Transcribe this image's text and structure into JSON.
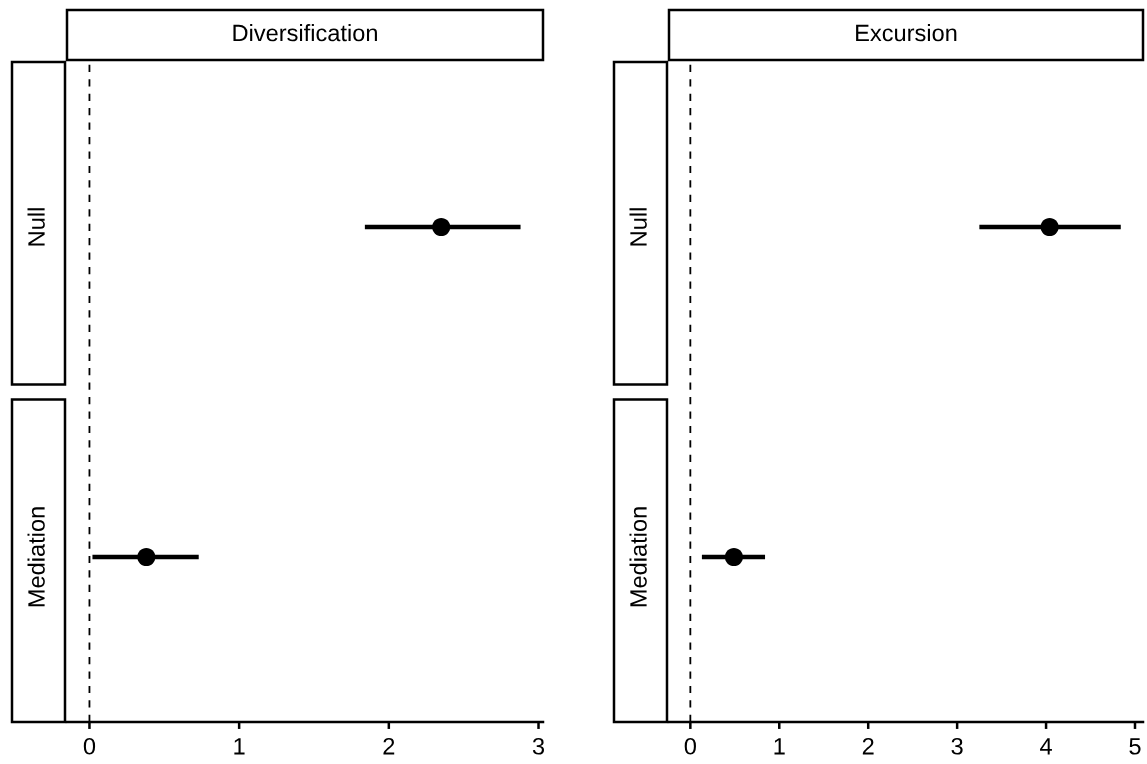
{
  "chart_data": [
    {
      "type": "scatter",
      "orientation": "horizontal",
      "title": "Diversification",
      "categories": [
        "Null",
        "Mediation"
      ],
      "values": [
        2.35,
        0.38
      ],
      "errors": [
        [
          1.84,
          2.88
        ],
        [
          0.02,
          0.73
        ]
      ],
      "color": "#000000",
      "marker": "circle",
      "xlim": [
        -0.15,
        3.03
      ],
      "xticks": [
        0,
        1,
        2,
        3
      ],
      "grid": false,
      "ref_lines": [
        {
          "axis": "x",
          "value": 0,
          "line_style": "dashed",
          "color": "#000000"
        }
      ]
    },
    {
      "type": "scatter",
      "orientation": "horizontal",
      "title": "Excursion",
      "categories": [
        "Null",
        "Mediation"
      ],
      "values": [
        4.04,
        0.49
      ],
      "errors": [
        [
          3.25,
          4.84
        ],
        [
          0.13,
          0.84
        ]
      ],
      "color": "#000000",
      "marker": "circle",
      "xlim": [
        -0.24,
        5.09
      ],
      "xticks": [
        0,
        1,
        2,
        3,
        4,
        5
      ],
      "grid": false,
      "ref_lines": [
        {
          "axis": "x",
          "value": 0,
          "line_style": "dashed",
          "color": "#000000"
        }
      ]
    }
  ]
}
